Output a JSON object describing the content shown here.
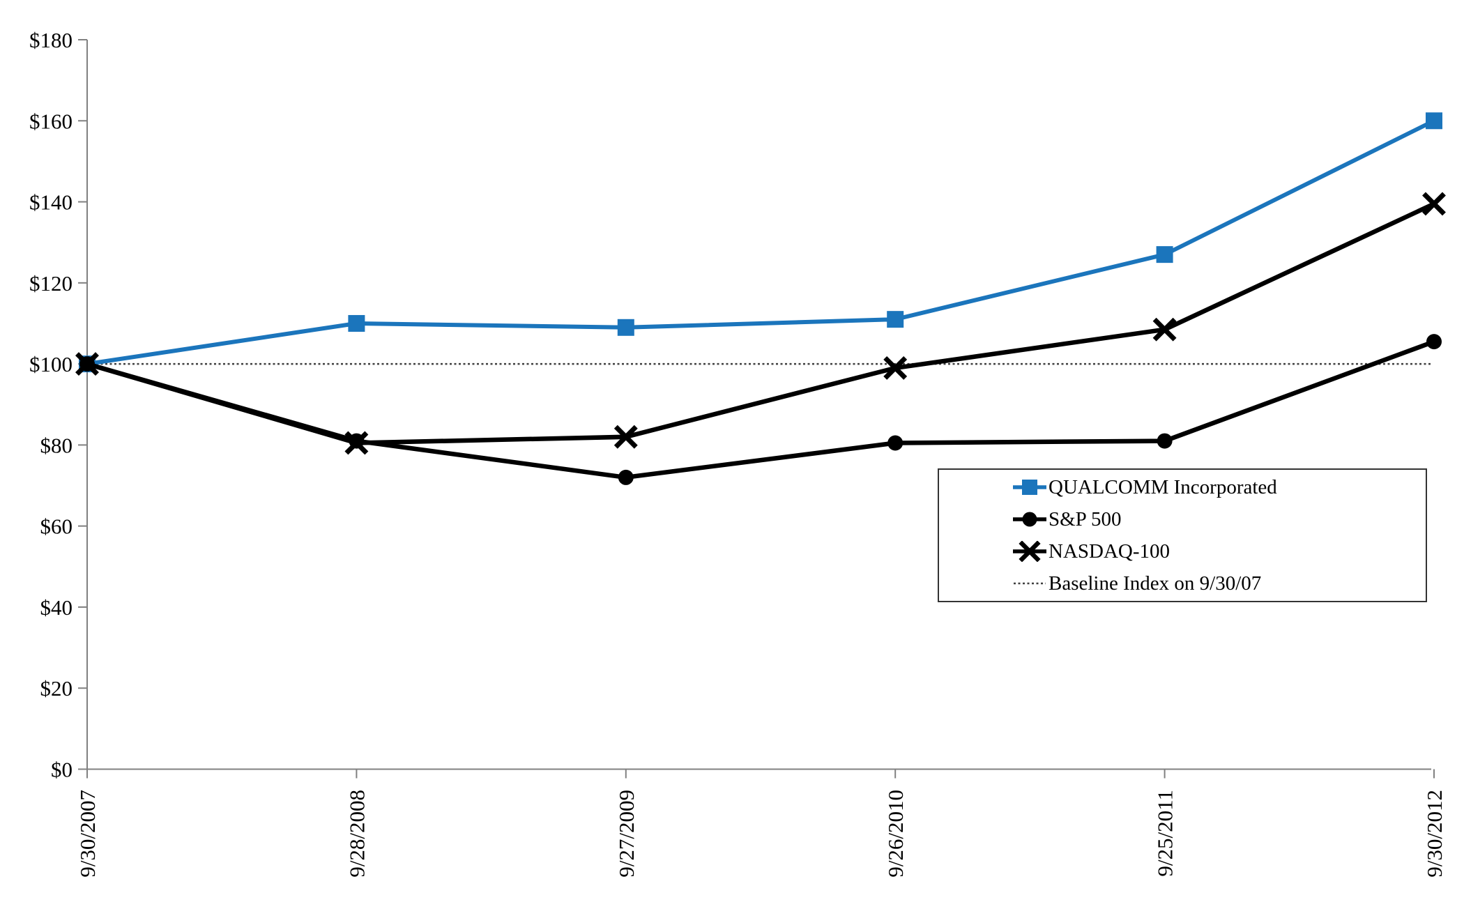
{
  "chart_data": {
    "type": "line",
    "title": "",
    "categories": [
      "9/30/2007",
      "9/28/2008",
      "9/27/2009",
      "9/26/2010",
      "9/25/2011",
      "9/30/2012"
    ],
    "series": [
      {
        "name": "QUALCOMM Incorporated",
        "marker": "square",
        "color": "#1b75bc",
        "line_width": 6,
        "values": [
          100,
          110,
          109,
          111,
          127,
          160
        ]
      },
      {
        "name": "S&P 500",
        "marker": "circle",
        "color": "#000000",
        "line_width": 6.5,
        "values": [
          100,
          81,
          72,
          80.5,
          81,
          105.5
        ]
      },
      {
        "name": "NASDAQ-100",
        "marker": "x",
        "color": "#000000",
        "line_width": 6.5,
        "values": [
          100,
          80.5,
          82,
          99,
          108.5,
          139.5
        ]
      }
    ],
    "baseline": {
      "label": "Baseline Index on 9/30/07",
      "value": 100,
      "style": "dotted",
      "color": "#3f3f3f"
    },
    "y_axis": {
      "min": 0,
      "max": 180,
      "tick_step": 20,
      "tick_prefix": "$",
      "labels": [
        "$0",
        "$20",
        "$40",
        "$60",
        "$80",
        "$100",
        "$120",
        "$140",
        "$160",
        "$180"
      ]
    },
    "x_axis": {
      "tick_label_rotation": -90
    },
    "legend_position": "right-middle",
    "grid": false,
    "axis_color": "#808080"
  }
}
